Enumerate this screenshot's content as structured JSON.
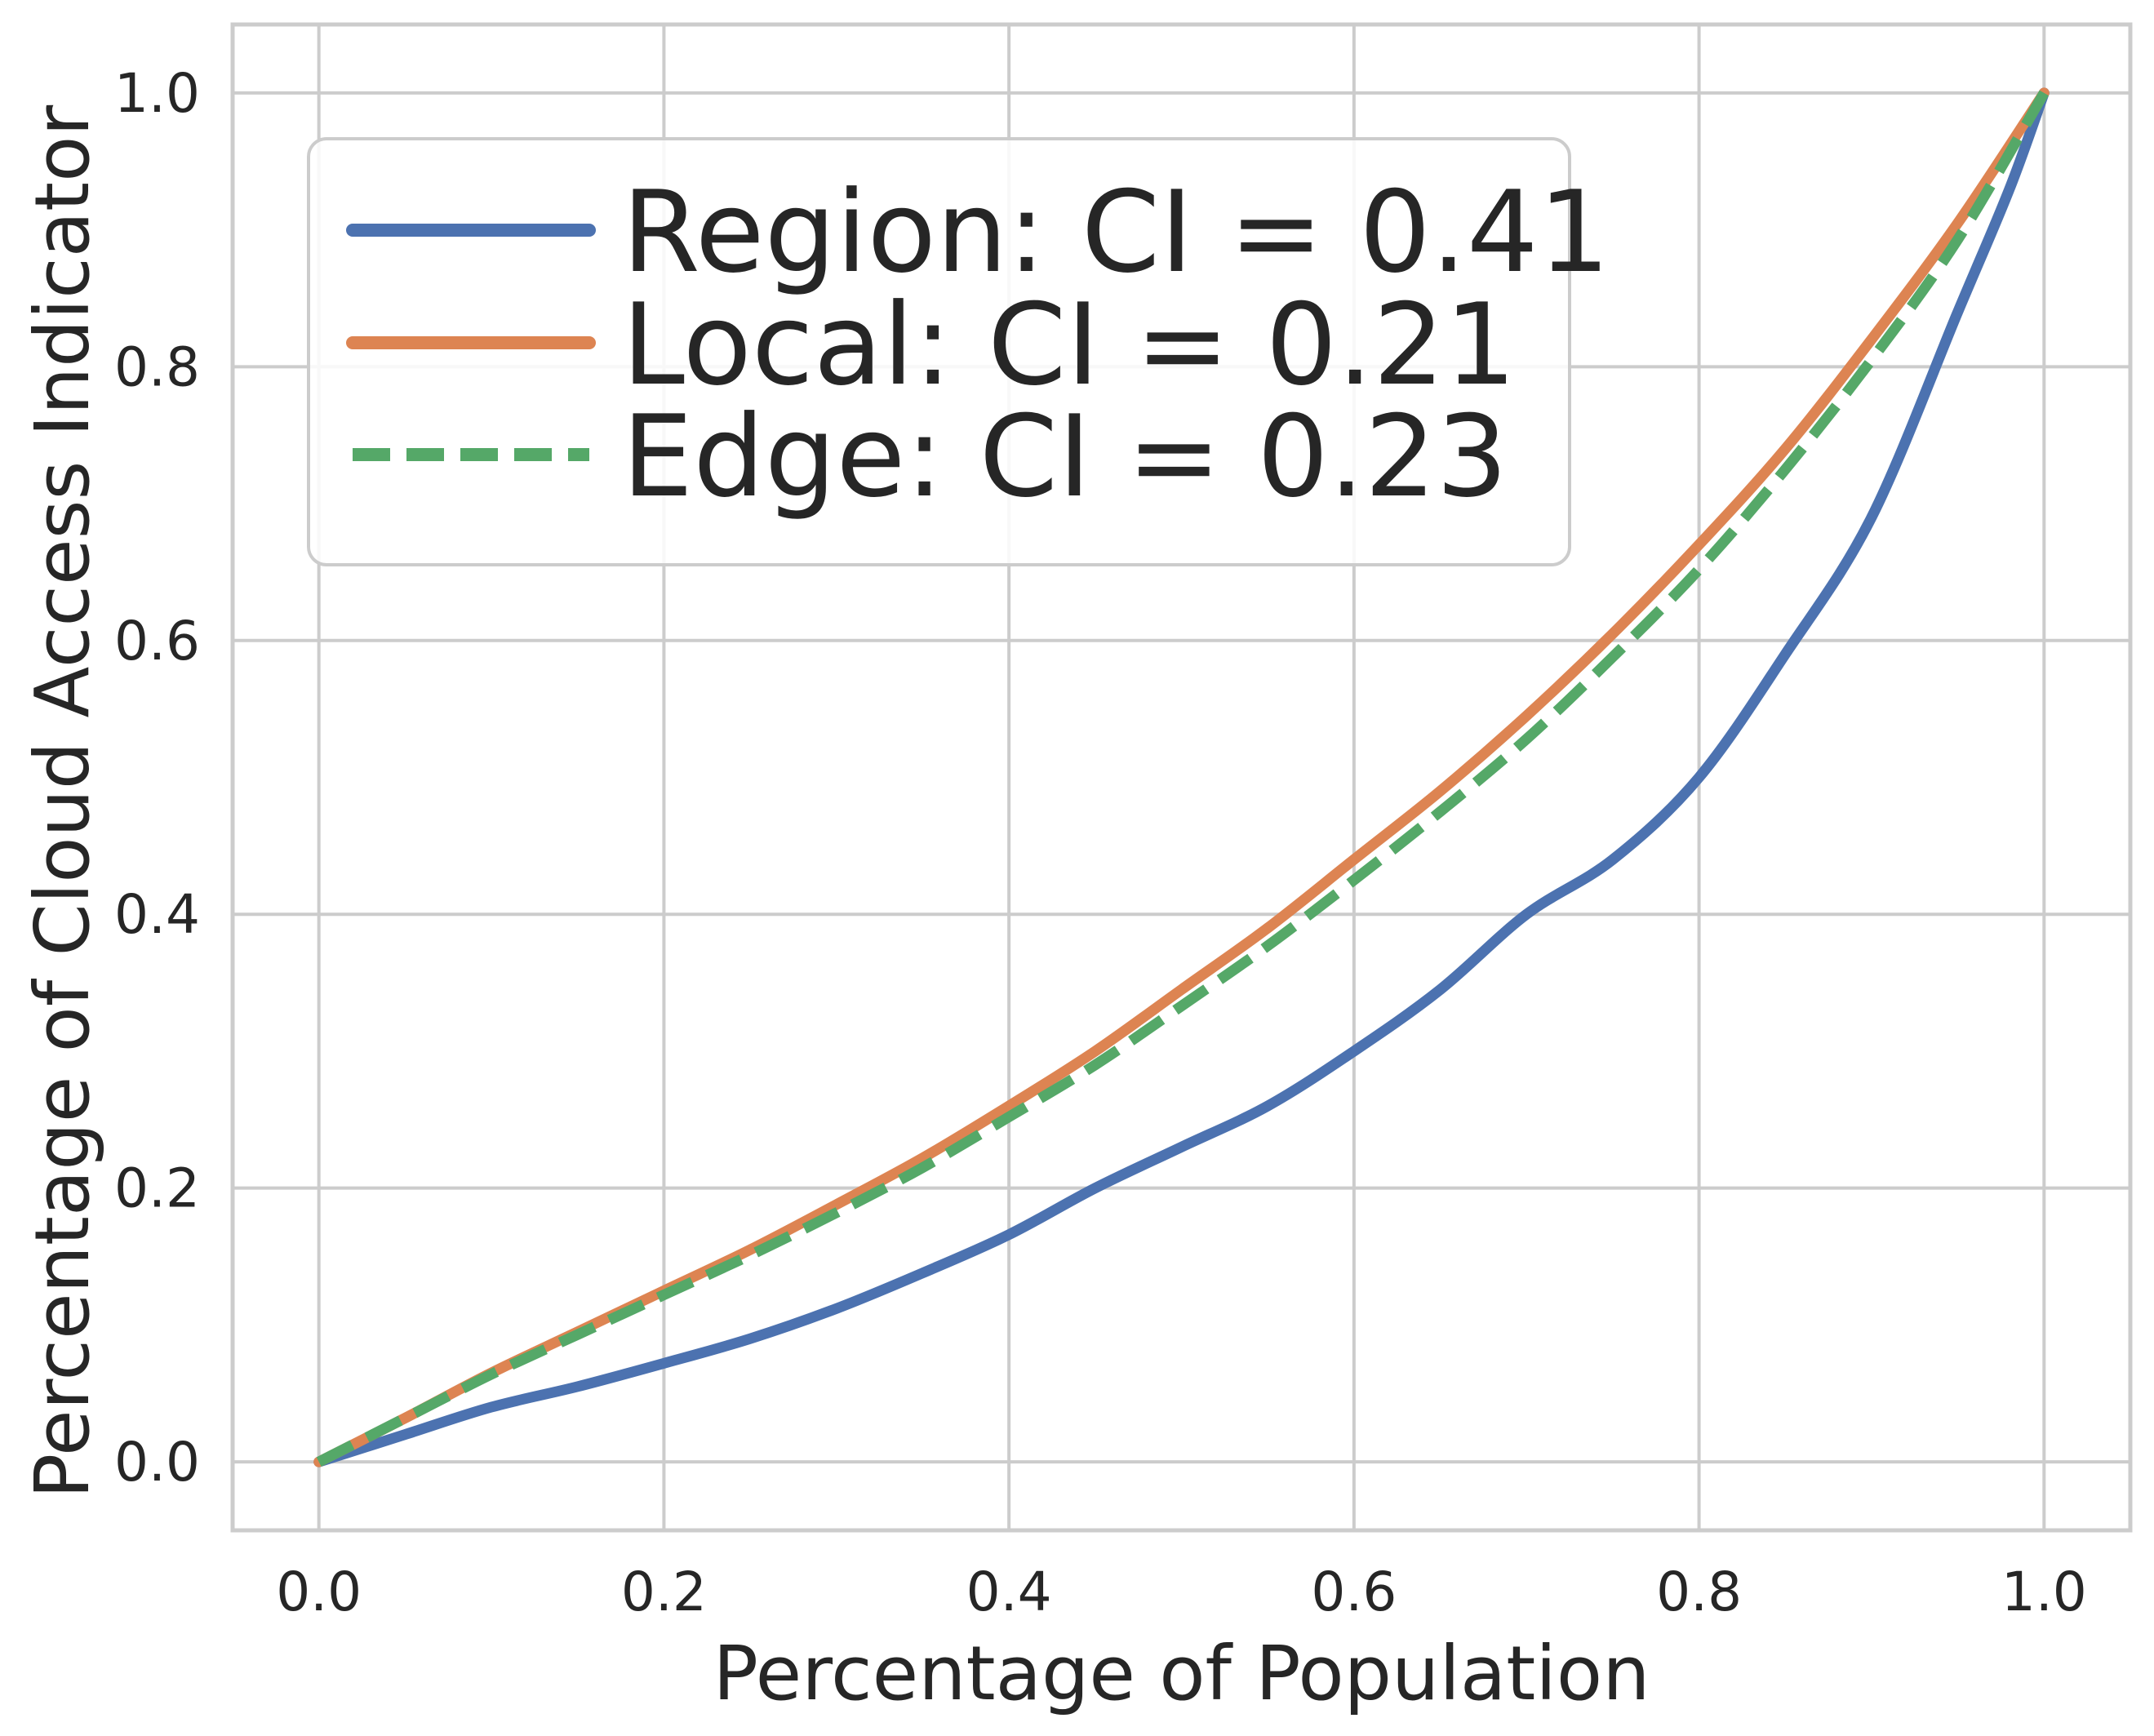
{
  "chart_data": {
    "type": "line",
    "title": "",
    "xlabel": "Percentage of Population",
    "ylabel": "Percentage of Cloud Access Indicator",
    "xlim": [
      -0.05,
      1.05
    ],
    "ylim": [
      -0.05,
      1.05
    ],
    "xticks": [
      0.0,
      0.2,
      0.4,
      0.6,
      0.8,
      1.0
    ],
    "yticks": [
      0.0,
      0.2,
      0.4,
      0.6,
      0.8,
      1.0
    ],
    "xtick_labels": [
      "0.0",
      "0.2",
      "0.4",
      "0.6",
      "0.8",
      "1.0"
    ],
    "ytick_labels": [
      "0.0",
      "0.2",
      "0.4",
      "0.6",
      "0.8",
      "1.0"
    ],
    "grid": true,
    "legend_position": "top-left",
    "series": [
      {
        "name": "Region: CI = 0.41",
        "color": "#4c72b0",
        "style": "solid",
        "x": [
          0.0,
          0.05,
          0.1,
          0.15,
          0.2,
          0.25,
          0.3,
          0.35,
          0.4,
          0.45,
          0.5,
          0.55,
          0.6,
          0.65,
          0.7,
          0.75,
          0.8,
          0.85,
          0.9,
          0.95,
          0.98,
          1.0
        ],
        "y": [
          0.0,
          0.02,
          0.04,
          0.055,
          0.072,
          0.09,
          0.112,
          0.138,
          0.166,
          0.2,
          0.23,
          0.26,
          0.3,
          0.345,
          0.4,
          0.44,
          0.5,
          0.59,
          0.69,
          0.84,
          0.93,
          1.0
        ]
      },
      {
        "name": "Local: CI = 0.21",
        "color": "#dd8452",
        "style": "solid",
        "x": [
          0.0,
          0.05,
          0.1,
          0.15,
          0.2,
          0.25,
          0.3,
          0.35,
          0.4,
          0.45,
          0.5,
          0.55,
          0.6,
          0.65,
          0.7,
          0.75,
          0.8,
          0.85,
          0.9,
          0.95,
          1.0
        ],
        "y": [
          0.0,
          0.032,
          0.065,
          0.095,
          0.125,
          0.155,
          0.188,
          0.222,
          0.26,
          0.3,
          0.345,
          0.39,
          0.44,
          0.49,
          0.545,
          0.605,
          0.67,
          0.74,
          0.82,
          0.905,
          1.0
        ]
      },
      {
        "name": "Edge: CI = 0.23",
        "color": "#55a868",
        "style": "dashed",
        "x": [
          0.0,
          0.05,
          0.1,
          0.15,
          0.2,
          0.25,
          0.3,
          0.35,
          0.4,
          0.45,
          0.5,
          0.55,
          0.6,
          0.65,
          0.7,
          0.75,
          0.8,
          0.85,
          0.9,
          0.95,
          1.0
        ],
        "y": [
          0.0,
          0.032,
          0.064,
          0.093,
          0.122,
          0.151,
          0.182,
          0.215,
          0.252,
          0.29,
          0.333,
          0.377,
          0.425,
          0.475,
          0.528,
          0.588,
          0.652,
          0.725,
          0.805,
          0.893,
          1.0
        ]
      }
    ]
  }
}
